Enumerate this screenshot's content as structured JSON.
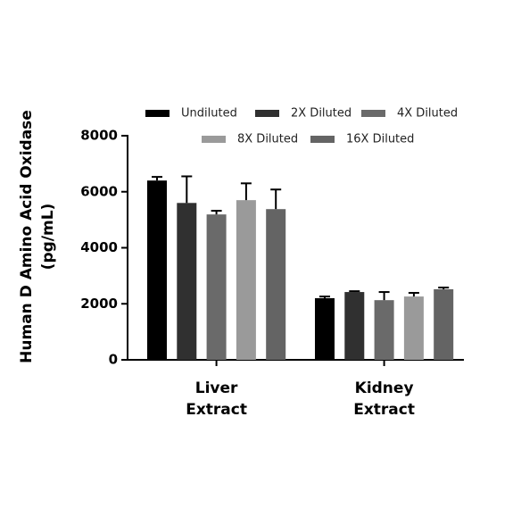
{
  "chart_data": {
    "type": "bar",
    "y_label": [
      "Human D Amino Acid Oxidase",
      "(pg/mL)"
    ],
    "categories": [
      [
        "Liver",
        "Extract"
      ],
      [
        "Kidney",
        "Extract"
      ]
    ],
    "series": [
      {
        "name": "Undiluted",
        "color": "#000000",
        "values": [
          6400,
          2200
        ],
        "errors": [
          130,
          60
        ]
      },
      {
        "name": "2X Diluted",
        "color": "#303030",
        "values": [
          5600,
          2420
        ],
        "errors": [
          950,
          30
        ]
      },
      {
        "name": "4X Diluted",
        "color": "#6a6a6a",
        "values": [
          5190,
          2130
        ],
        "errors": [
          130,
          290
        ]
      },
      {
        "name": "8X Diluted",
        "color": "#9a9a9a",
        "values": [
          5700,
          2260
        ],
        "errors": [
          600,
          130
        ]
      },
      {
        "name": "16X Diluted",
        "color": "#646464",
        "values": [
          5380,
          2520
        ],
        "errors": [
          700,
          60
        ]
      }
    ],
    "ylim": [
      0,
      8000
    ],
    "yticks": [
      0,
      2000,
      4000,
      6000,
      8000
    ]
  }
}
